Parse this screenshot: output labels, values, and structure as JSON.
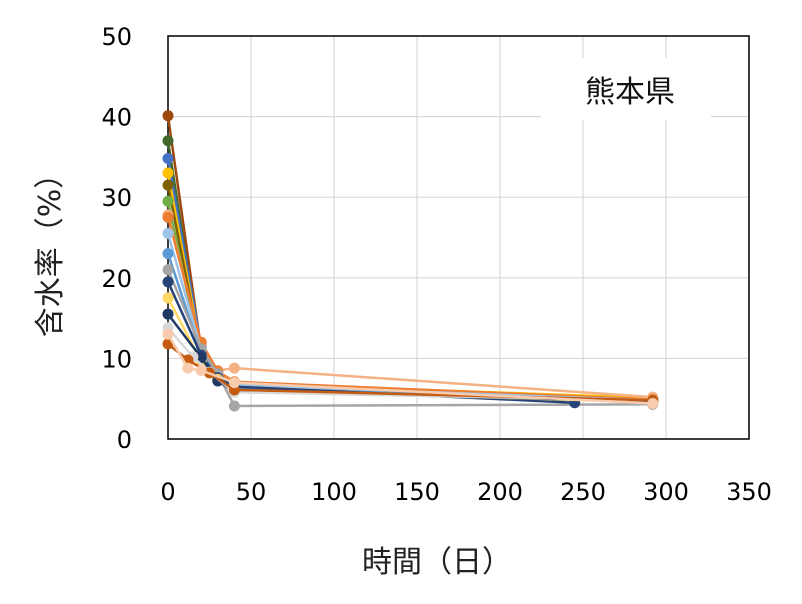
{
  "chart_data": {
    "type": "line",
    "title": "",
    "annotation": "熊本県",
    "xlabel": "時間（日）",
    "ylabel": "含水率（%）",
    "xlim": [
      0,
      350
    ],
    "ylim": [
      0,
      50
    ],
    "xticks": [
      "0",
      "50",
      "100",
      "150",
      "200",
      "250",
      "300",
      "350"
    ],
    "yticks": [
      "0",
      "10",
      "20",
      "30",
      "40",
      "50"
    ],
    "grid": true,
    "legend": "none",
    "series": [
      {
        "color": "#9e480e",
        "x": [
          0,
          20,
          30,
          40,
          292
        ],
        "y": [
          40.1,
          11.0,
          7.8,
          6.8,
          4.9
        ]
      },
      {
        "color": "#43682b",
        "x": [
          0,
          20,
          30,
          40,
          292
        ],
        "y": [
          37.0,
          10.2,
          7.5,
          6.6,
          4.8
        ]
      },
      {
        "color": "#4472c4",
        "x": [
          0,
          20,
          30,
          40,
          292
        ],
        "y": [
          34.8,
          11.5,
          8.2,
          6.4,
          5.0
        ]
      },
      {
        "color": "#ffc000",
        "x": [
          0,
          20,
          30,
          40,
          292
        ],
        "y": [
          33.0,
          10.8,
          7.9,
          6.9,
          5.1
        ]
      },
      {
        "color": "#7e6000",
        "x": [
          0,
          20,
          30,
          40,
          292
        ],
        "y": [
          31.5,
          10.5,
          7.6,
          6.5,
          4.7
        ]
      },
      {
        "color": "#70ad47",
        "x": [
          0,
          20,
          30,
          40,
          292
        ],
        "y": [
          29.5,
          10.0,
          7.3,
          6.2,
          4.6
        ]
      },
      {
        "color": "#f4b183",
        "x": [
          0,
          20,
          30,
          40,
          292
        ],
        "y": [
          27.8,
          11.8,
          8.5,
          8.8,
          5.2
        ]
      },
      {
        "color": "#ed7d31",
        "x": [
          0,
          20,
          30,
          40,
          292
        ],
        "y": [
          27.5,
          12.0,
          8.4,
          7.1,
          4.9
        ]
      },
      {
        "color": "#9dc3e6",
        "x": [
          0,
          20,
          30,
          40,
          292
        ],
        "y": [
          25.5,
          11.0,
          8.0,
          6.7,
          4.8
        ]
      },
      {
        "color": "#5b9bd5",
        "x": [
          0,
          20,
          30,
          40,
          292
        ],
        "y": [
          23.0,
          10.6,
          7.7,
          6.3,
          4.7
        ]
      },
      {
        "color": "#a5a5a5",
        "x": [
          0,
          20,
          30,
          40,
          292
        ],
        "y": [
          21.0,
          11.2,
          8.1,
          4.1,
          4.3
        ]
      },
      {
        "color": "#264478",
        "x": [
          0,
          20,
          30,
          40,
          245
        ],
        "y": [
          19.5,
          10.4,
          7.6,
          6.5,
          4.5
        ]
      },
      {
        "color": "#ffd966",
        "x": [
          0,
          20,
          30,
          40,
          292
        ],
        "y": [
          17.5,
          9.6,
          7.4,
          6.0,
          4.6
        ]
      },
      {
        "color": "#203864",
        "x": [
          0,
          20,
          30,
          40,
          292
        ],
        "y": [
          15.5,
          10.1,
          7.2,
          5.9,
          4.7
        ]
      },
      {
        "color": "#d9d9d9",
        "x": [
          0,
          15,
          25,
          40,
          292
        ],
        "y": [
          13.8,
          10.2,
          8.3,
          5.8,
          4.8
        ]
      },
      {
        "color": "#c55a11",
        "x": [
          0,
          12,
          25,
          40,
          292
        ],
        "y": [
          11.8,
          9.8,
          8.2,
          6.1,
          4.8
        ]
      },
      {
        "color": "#f8cbad",
        "x": [
          0,
          12,
          20,
          40,
          292
        ],
        "y": [
          13.0,
          8.8,
          8.5,
          7.0,
          4.4
        ]
      }
    ]
  }
}
